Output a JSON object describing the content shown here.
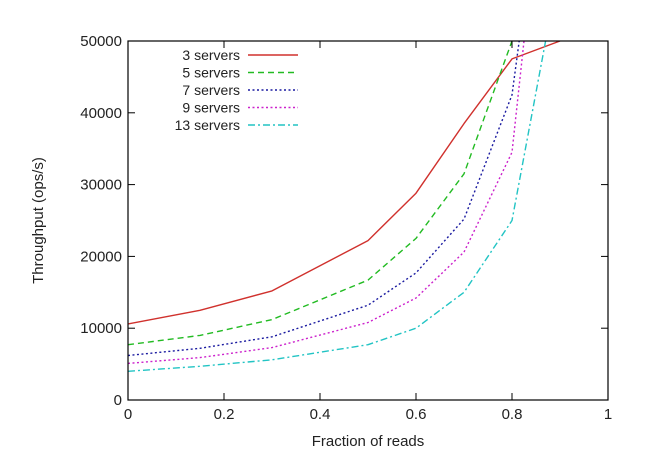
{
  "chart_data": {
    "type": "line",
    "title": "",
    "xlabel": "Fraction of reads",
    "ylabel": "Throughput (ops/s)",
    "xlim": [
      0,
      1
    ],
    "ylim": [
      0,
      50000
    ],
    "x_ticks": [
      0,
      0.2,
      0.4,
      0.6,
      0.8,
      1
    ],
    "x_tick_labels": [
      "0",
      "0.2",
      "0.4",
      "0.6",
      "0.8",
      "1"
    ],
    "y_ticks": [
      0,
      10000,
      20000,
      30000,
      40000,
      50000
    ],
    "y_tick_labels": [
      "0",
      "10000",
      "20000",
      "30000",
      "40000",
      "50000"
    ],
    "grid": false,
    "legend_position": "top-left",
    "series": [
      {
        "name": "3 servers",
        "color": "#d0312d",
        "dash": "solid",
        "points": [
          [
            0,
            10600
          ],
          [
            0.15,
            12500
          ],
          [
            0.3,
            15200
          ],
          [
            0.5,
            22200
          ],
          [
            0.6,
            28800
          ],
          [
            0.7,
            38500
          ],
          [
            0.8,
            47500
          ],
          [
            0.9,
            50000
          ]
        ]
      },
      {
        "name": "5 servers",
        "color": "#22bb22",
        "dash": "dashed",
        "points": [
          [
            0,
            7700
          ],
          [
            0.15,
            9000
          ],
          [
            0.3,
            11200
          ],
          [
            0.5,
            16700
          ],
          [
            0.6,
            22500
          ],
          [
            0.7,
            31500
          ],
          [
            0.8,
            50000
          ]
        ]
      },
      {
        "name": "7 servers",
        "color": "#1a1aa0",
        "dash": "dotted",
        "points": [
          [
            0,
            6200
          ],
          [
            0.15,
            7200
          ],
          [
            0.3,
            8800
          ],
          [
            0.5,
            13200
          ],
          [
            0.6,
            17700
          ],
          [
            0.7,
            25200
          ],
          [
            0.8,
            42500
          ],
          [
            0.815,
            50000
          ]
        ]
      },
      {
        "name": "9 servers",
        "color": "#cc22cc",
        "dash": "dotted",
        "points": [
          [
            0,
            5100
          ],
          [
            0.15,
            5900
          ],
          [
            0.3,
            7300
          ],
          [
            0.5,
            10800
          ],
          [
            0.6,
            14200
          ],
          [
            0.7,
            20600
          ],
          [
            0.8,
            34500
          ],
          [
            0.825,
            50000
          ]
        ]
      },
      {
        "name": "13 servers",
        "color": "#22c4c4",
        "dash": "dashdot",
        "points": [
          [
            0,
            4000
          ],
          [
            0.15,
            4700
          ],
          [
            0.3,
            5600
          ],
          [
            0.5,
            7700
          ],
          [
            0.6,
            10000
          ],
          [
            0.7,
            15000
          ],
          [
            0.8,
            25000
          ],
          [
            0.87,
            50000
          ]
        ]
      }
    ]
  }
}
